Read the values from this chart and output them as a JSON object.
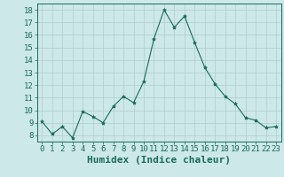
{
  "x": [
    0,
    1,
    2,
    3,
    4,
    5,
    6,
    7,
    8,
    9,
    10,
    11,
    12,
    13,
    14,
    15,
    16,
    17,
    18,
    19,
    20,
    21,
    22,
    23
  ],
  "y": [
    9.1,
    8.1,
    8.7,
    7.8,
    9.9,
    9.5,
    9.0,
    10.3,
    11.1,
    10.6,
    12.3,
    15.7,
    18.0,
    16.6,
    17.5,
    15.4,
    13.4,
    12.1,
    11.1,
    10.5,
    9.4,
    9.2,
    8.6,
    8.7
  ],
  "line_color": "#1a6b5a",
  "marker": "*",
  "marker_size": 3,
  "bg_color": "#cce8e8",
  "grid_color": "#b0cccc",
  "xlabel": "Humidex (Indice chaleur)",
  "ylim": [
    7.5,
    18.5
  ],
  "yticks": [
    8,
    9,
    10,
    11,
    12,
    13,
    14,
    15,
    16,
    17,
    18
  ],
  "xticks": [
    0,
    1,
    2,
    3,
    4,
    5,
    6,
    7,
    8,
    9,
    10,
    11,
    12,
    13,
    14,
    15,
    16,
    17,
    18,
    19,
    20,
    21,
    22,
    23
  ],
  "tick_color": "#1a6b5a",
  "label_color": "#1a6b5a",
  "xlabel_fontsize": 8,
  "tick_fontsize": 6.5
}
